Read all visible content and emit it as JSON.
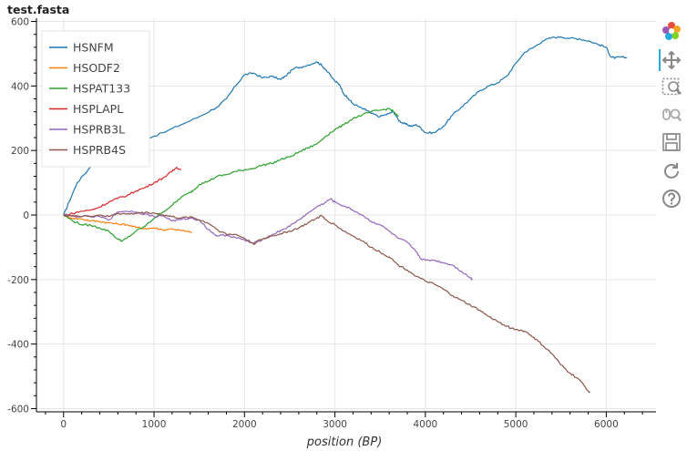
{
  "chart_data": {
    "type": "line",
    "title": "test.fasta",
    "xlabel": "position (BP)",
    "ylabel": "",
    "xlim": [
      -300,
      6550
    ],
    "ylim": [
      -610,
      610
    ],
    "x_ticks": [
      0,
      1000,
      2000,
      3000,
      4000,
      5000,
      6000
    ],
    "y_ticks": [
      -600,
      -400,
      -200,
      0,
      200,
      400,
      600
    ],
    "grid": true,
    "legend_position": "top-left",
    "series": [
      {
        "name": "HSNFM",
        "color": "#1f77b4",
        "points": [
          [
            0,
            0
          ],
          [
            60,
            40
          ],
          [
            150,
            100
          ],
          [
            300,
            150
          ],
          [
            500,
            190
          ],
          [
            700,
            210
          ],
          [
            900,
            235
          ],
          [
            1100,
            255
          ],
          [
            1300,
            280
          ],
          [
            1500,
            305
          ],
          [
            1700,
            335
          ],
          [
            1800,
            360
          ],
          [
            1900,
            400
          ],
          [
            2000,
            435
          ],
          [
            2100,
            440
          ],
          [
            2200,
            425
          ],
          [
            2300,
            430
          ],
          [
            2400,
            420
          ],
          [
            2450,
            430
          ],
          [
            2550,
            455
          ],
          [
            2650,
            460
          ],
          [
            2800,
            475
          ],
          [
            2850,
            465
          ],
          [
            2900,
            450
          ],
          [
            3000,
            415
          ],
          [
            3050,
            405
          ],
          [
            3100,
            375
          ],
          [
            3150,
            360
          ],
          [
            3200,
            345
          ],
          [
            3300,
            330
          ],
          [
            3350,
            325
          ],
          [
            3400,
            315
          ],
          [
            3500,
            305
          ],
          [
            3600,
            315
          ],
          [
            3650,
            320
          ],
          [
            3700,
            295
          ],
          [
            3750,
            285
          ],
          [
            3800,
            280
          ],
          [
            3850,
            275
          ],
          [
            3900,
            280
          ],
          [
            3950,
            270
          ],
          [
            4000,
            255
          ],
          [
            4100,
            255
          ],
          [
            4200,
            275
          ],
          [
            4300,
            310
          ],
          [
            4400,
            335
          ],
          [
            4500,
            360
          ],
          [
            4600,
            385
          ],
          [
            4700,
            400
          ],
          [
            4800,
            410
          ],
          [
            4900,
            430
          ],
          [
            5000,
            470
          ],
          [
            5100,
            505
          ],
          [
            5200,
            520
          ],
          [
            5300,
            540
          ],
          [
            5400,
            550
          ],
          [
            5500,
            552
          ],
          [
            5600,
            548
          ],
          [
            5700,
            546
          ],
          [
            5800,
            540
          ],
          [
            5900,
            530
          ],
          [
            6000,
            520
          ],
          [
            6050,
            490
          ],
          [
            6100,
            487
          ],
          [
            6150,
            490
          ],
          [
            6230,
            487
          ]
        ]
      },
      {
        "name": "HSODF2",
        "color": "#ff7f0e",
        "points": [
          [
            0,
            0
          ],
          [
            100,
            -10
          ],
          [
            200,
            -12
          ],
          [
            300,
            -18
          ],
          [
            400,
            -20
          ],
          [
            500,
            -24
          ],
          [
            600,
            -28
          ],
          [
            700,
            -30
          ],
          [
            800,
            -38
          ],
          [
            900,
            -42
          ],
          [
            1000,
            -40
          ],
          [
            1100,
            -46
          ],
          [
            1200,
            -43
          ],
          [
            1300,
            -48
          ],
          [
            1420,
            -55
          ]
        ]
      },
      {
        "name": "HSPAT133",
        "color": "#2ca02c",
        "points": [
          [
            0,
            0
          ],
          [
            100,
            -18
          ],
          [
            200,
            -30
          ],
          [
            300,
            -32
          ],
          [
            400,
            -40
          ],
          [
            500,
            -50
          ],
          [
            600,
            -75
          ],
          [
            650,
            -80
          ],
          [
            700,
            -72
          ],
          [
            800,
            -50
          ],
          [
            900,
            -35
          ],
          [
            1000,
            -10
          ],
          [
            1100,
            10
          ],
          [
            1200,
            30
          ],
          [
            1300,
            55
          ],
          [
            1400,
            70
          ],
          [
            1450,
            80
          ],
          [
            1500,
            95
          ],
          [
            1600,
            105
          ],
          [
            1700,
            120
          ],
          [
            1800,
            125
          ],
          [
            1900,
            135
          ],
          [
            2000,
            140
          ],
          [
            2100,
            145
          ],
          [
            2200,
            155
          ],
          [
            2300,
            160
          ],
          [
            2400,
            172
          ],
          [
            2500,
            180
          ],
          [
            2600,
            195
          ],
          [
            2700,
            208
          ],
          [
            2800,
            220
          ],
          [
            2900,
            245
          ],
          [
            3000,
            265
          ],
          [
            3100,
            280
          ],
          [
            3200,
            300
          ],
          [
            3300,
            310
          ],
          [
            3400,
            320
          ],
          [
            3500,
            325
          ],
          [
            3600,
            330
          ],
          [
            3650,
            320
          ],
          [
            3700,
            305
          ]
        ]
      },
      {
        "name": "HSPLAPL",
        "color": "#d62728",
        "points": [
          [
            0,
            0
          ],
          [
            100,
            5
          ],
          [
            200,
            12
          ],
          [
            300,
            15
          ],
          [
            400,
            25
          ],
          [
            500,
            40
          ],
          [
            600,
            52
          ],
          [
            700,
            60
          ],
          [
            800,
            75
          ],
          [
            900,
            85
          ],
          [
            1000,
            100
          ],
          [
            1100,
            115
          ],
          [
            1200,
            135
          ],
          [
            1250,
            148
          ],
          [
            1300,
            140
          ]
        ]
      },
      {
        "name": "HSPRB3L",
        "color": "#9467bd",
        "points": [
          [
            0,
            0
          ],
          [
            200,
            -5
          ],
          [
            400,
            -5
          ],
          [
            500,
            -15
          ],
          [
            600,
            10
          ],
          [
            700,
            12
          ],
          [
            800,
            10
          ],
          [
            900,
            3
          ],
          [
            1000,
            -5
          ],
          [
            1100,
            -2
          ],
          [
            1200,
            -18
          ],
          [
            1300,
            -14
          ],
          [
            1400,
            -10
          ],
          [
            1500,
            -15
          ],
          [
            1600,
            -45
          ],
          [
            1700,
            -65
          ],
          [
            1800,
            -62
          ],
          [
            1900,
            -70
          ],
          [
            2000,
            -78
          ],
          [
            2100,
            -88
          ],
          [
            2200,
            -75
          ],
          [
            2300,
            -62
          ],
          [
            2400,
            -48
          ],
          [
            2500,
            -35
          ],
          [
            2600,
            -15
          ],
          [
            2700,
            5
          ],
          [
            2800,
            25
          ],
          [
            2900,
            40
          ],
          [
            2950,
            50
          ],
          [
            3000,
            40
          ],
          [
            3100,
            28
          ],
          [
            3200,
            15
          ],
          [
            3300,
            0
          ],
          [
            3400,
            -20
          ],
          [
            3500,
            -30
          ],
          [
            3600,
            -50
          ],
          [
            3700,
            -72
          ],
          [
            3800,
            -85
          ],
          [
            3900,
            -115
          ],
          [
            3950,
            -135
          ],
          [
            4000,
            -140
          ],
          [
            4100,
            -140
          ],
          [
            4200,
            -148
          ],
          [
            4300,
            -155
          ],
          [
            4400,
            -175
          ],
          [
            4500,
            -195
          ],
          [
            4520,
            -200
          ]
        ]
      },
      {
        "name": "HSPRB4S",
        "color": "#8c564b",
        "points": [
          [
            0,
            0
          ],
          [
            200,
            -5
          ],
          [
            400,
            0
          ],
          [
            500,
            -5
          ],
          [
            600,
            5
          ],
          [
            700,
            3
          ],
          [
            800,
            5
          ],
          [
            900,
            8
          ],
          [
            1000,
            6
          ],
          [
            1100,
            0
          ],
          [
            1200,
            -5
          ],
          [
            1300,
            -10
          ],
          [
            1400,
            -5
          ],
          [
            1500,
            -15
          ],
          [
            1600,
            -25
          ],
          [
            1700,
            -45
          ],
          [
            1800,
            -60
          ],
          [
            1900,
            -60
          ],
          [
            2000,
            -72
          ],
          [
            2100,
            -90
          ],
          [
            2150,
            -80
          ],
          [
            2200,
            -75
          ],
          [
            2300,
            -65
          ],
          [
            2400,
            -58
          ],
          [
            2500,
            -50
          ],
          [
            2600,
            -40
          ],
          [
            2700,
            -25
          ],
          [
            2800,
            -10
          ],
          [
            2850,
            -2
          ],
          [
            2900,
            -15
          ],
          [
            3000,
            -30
          ],
          [
            3100,
            -50
          ],
          [
            3200,
            -65
          ],
          [
            3300,
            -80
          ],
          [
            3400,
            -100
          ],
          [
            3500,
            -115
          ],
          [
            3600,
            -130
          ],
          [
            3700,
            -155
          ],
          [
            3800,
            -170
          ],
          [
            3900,
            -190
          ],
          [
            4000,
            -205
          ],
          [
            4100,
            -215
          ],
          [
            4200,
            -230
          ],
          [
            4300,
            -250
          ],
          [
            4400,
            -265
          ],
          [
            4500,
            -280
          ],
          [
            4600,
            -295
          ],
          [
            4700,
            -315
          ],
          [
            4800,
            -330
          ],
          [
            4900,
            -345
          ],
          [
            5000,
            -355
          ],
          [
            5100,
            -360
          ],
          [
            5200,
            -380
          ],
          [
            5300,
            -405
          ],
          [
            5400,
            -430
          ],
          [
            5500,
            -465
          ],
          [
            5600,
            -490
          ],
          [
            5700,
            -510
          ],
          [
            5800,
            -545
          ],
          [
            5820,
            -550
          ]
        ]
      }
    ]
  },
  "toolbar": {
    "icons": [
      "bokeh-logo-icon",
      "pan-icon",
      "box-zoom-icon",
      "wheel-zoom-icon",
      "save-icon",
      "reset-icon",
      "help-icon"
    ],
    "accent": "#26aae1"
  }
}
